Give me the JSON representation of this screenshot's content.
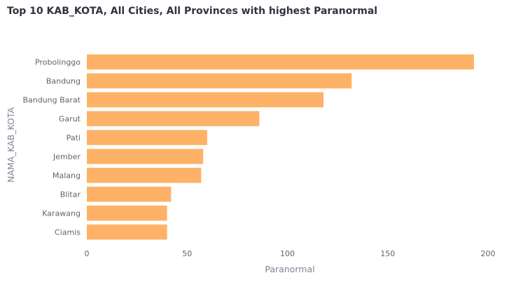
{
  "chart_data": {
    "type": "bar",
    "orientation": "horizontal",
    "title": "Top 10 KAB_KOTA, All Cities, All Provinces with highest Paranormal",
    "xlabel": "Paranormal",
    "ylabel": "NAMA_KAB_KOTA",
    "categories": [
      "Probolinggo",
      "Bandung",
      "Bandung Barat",
      "Garut",
      "Pati",
      "Jember",
      "Malang",
      "Blitar",
      "Karawang",
      "Ciamis"
    ],
    "values": [
      193,
      132,
      118,
      86,
      60,
      58,
      57,
      42,
      40,
      40
    ],
    "xlim": [
      0,
      200
    ],
    "xticks": [
      0,
      50,
      100,
      150,
      200
    ],
    "bar_color": "#fdb268",
    "grid": false
  }
}
